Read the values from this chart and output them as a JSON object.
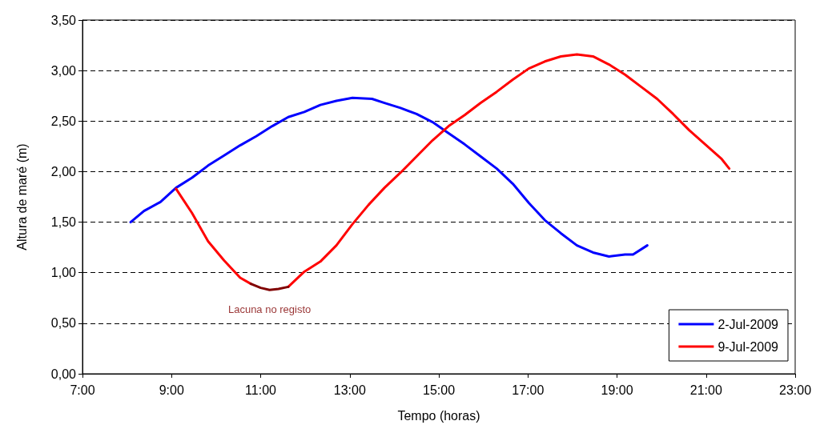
{
  "chart_data": {
    "type": "line",
    "xlabel": "Tempo (horas)",
    "ylabel": "Altura de maré (m)",
    "xlim": [
      7,
      23
    ],
    "xticks": [
      {
        "value": 7,
        "label": "7:00"
      },
      {
        "value": 9,
        "label": "9:00"
      },
      {
        "value": 11,
        "label": "11:00"
      },
      {
        "value": 13,
        "label": "13:00"
      },
      {
        "value": 15,
        "label": "15:00"
      },
      {
        "value": 17,
        "label": "17:00"
      },
      {
        "value": 19,
        "label": "19:00"
      },
      {
        "value": 21,
        "label": "21:00"
      },
      {
        "value": 23,
        "label": "23:00"
      }
    ],
    "ylim": [
      0,
      3.5
    ],
    "yticks": [
      {
        "value": 0,
        "label": "0,00"
      },
      {
        "value": 0.5,
        "label": "0,50"
      },
      {
        "value": 1,
        "label": "1,00"
      },
      {
        "value": 1.5,
        "label": "1,50"
      },
      {
        "value": 2,
        "label": "2,00"
      },
      {
        "value": 2.5,
        "label": "2,50"
      },
      {
        "value": 3,
        "label": "3,00"
      },
      {
        "value": 3.5,
        "label": "3,50"
      }
    ],
    "grid": "y",
    "legend": "bottom right",
    "marker": "none",
    "line_style": "solid",
    "series": [
      {
        "name": "2-Jul-2009",
        "color": "#0000ff",
        "x": [
          8.08,
          8.38,
          8.75,
          9.1,
          9.46,
          9.82,
          10.18,
          10.54,
          10.9,
          11.26,
          11.62,
          11.98,
          12.34,
          12.7,
          13.06,
          13.5,
          13.78,
          14.14,
          14.5,
          14.86,
          15.22,
          15.58,
          15.94,
          16.3,
          16.66,
          17.02,
          17.38,
          17.74,
          18.1,
          18.46,
          18.82,
          19.18,
          19.36,
          19.68
        ],
        "values": [
          1.5,
          1.61,
          1.7,
          1.84,
          1.94,
          2.06,
          2.16,
          2.26,
          2.35,
          2.45,
          2.54,
          2.59,
          2.66,
          2.7,
          2.73,
          2.72,
          2.68,
          2.63,
          2.57,
          2.49,
          2.38,
          2.27,
          2.15,
          2.03,
          1.88,
          1.69,
          1.52,
          1.39,
          1.27,
          1.2,
          1.16,
          1.18,
          1.18,
          1.27
        ]
      },
      {
        "name": "9-Jul-2009",
        "color": "#ff0000",
        "x": [
          9.1,
          9.46,
          9.82,
          10.18,
          10.54,
          10.78,
          11.2,
          11.62,
          11.98,
          12.34,
          12.7,
          13.06,
          13.42,
          13.78,
          14.14,
          14.5,
          14.86,
          15.22,
          15.58,
          15.94,
          16.3,
          16.66,
          17.02,
          17.38,
          17.74,
          18.1,
          18.46,
          18.82,
          19.18,
          19.54,
          19.9,
          20.26,
          20.62,
          20.98,
          21.34,
          21.52
        ],
        "values": [
          1.83,
          1.59,
          1.31,
          1.12,
          0.95,
          0.89,
          null,
          0.86,
          1.01,
          1.11,
          1.27,
          1.48,
          1.67,
          1.84,
          1.99,
          2.15,
          2.31,
          2.45,
          2.56,
          2.68,
          2.79,
          2.91,
          3.02,
          3.09,
          3.14,
          3.16,
          3.14,
          3.06,
          2.96,
          2.84,
          2.72,
          2.57,
          2.41,
          2.27,
          2.13,
          2.03
        ]
      },
      {
        "color": "#800000",
        "x": [
          10.78,
          11.0,
          11.2,
          11.4,
          11.62
        ],
        "values": [
          0.89,
          0.85,
          0.83,
          0.84,
          0.86
        ]
      }
    ],
    "annotations": [
      {
        "text": "Lacuna no registo",
        "x": 11.2,
        "y": 0.83
      }
    ]
  }
}
